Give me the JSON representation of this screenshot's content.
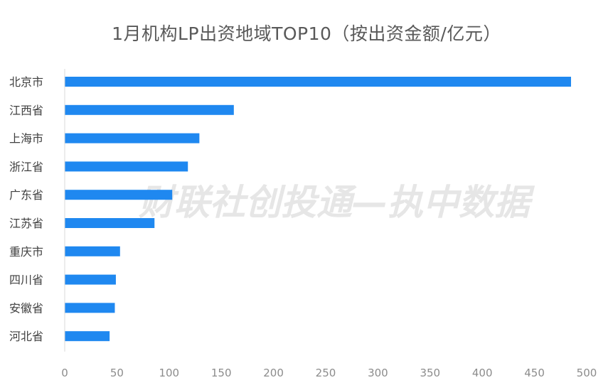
{
  "chart_data": {
    "type": "bar",
    "orientation": "horizontal",
    "title": "1月机构LP出资地域TOP10（按出资金额/亿元）",
    "categories": [
      "北京市",
      "江西省",
      "上海市",
      "浙江省",
      "广东省",
      "江苏省",
      "重庆市",
      "四川省",
      "安徽省",
      "河北省"
    ],
    "values": [
      485,
      162,
      129,
      118,
      103,
      86,
      53,
      49,
      48,
      43
    ],
    "xlim": [
      0,
      500
    ],
    "xticks": [
      0,
      50,
      100,
      150,
      200,
      250,
      300,
      350,
      400,
      450,
      500
    ],
    "grid": false,
    "bar_color": "#1f88f0",
    "watermark": "财联社创投通—执中数据"
  }
}
